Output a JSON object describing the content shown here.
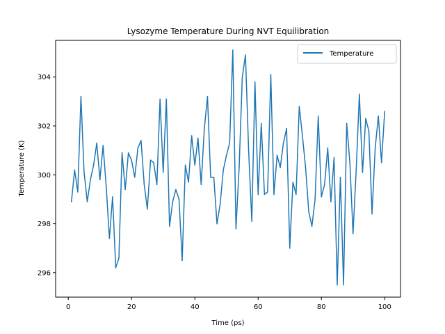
{
  "chart_data": {
    "type": "line",
    "title": "Lysozyme Temperature During NVT Equilibration",
    "xlabel": "Time (ps)",
    "ylabel": "Temperature (K)",
    "xlim": [
      -4,
      105
    ],
    "ylim": [
      295.0,
      305.5
    ],
    "x_ticks": [
      0,
      20,
      40,
      60,
      80,
      100
    ],
    "y_ticks": [
      296,
      298,
      300,
      302,
      304
    ],
    "legend_position": "top-right",
    "grid": false,
    "series": [
      {
        "name": "Temperature",
        "color": "#1f77b4",
        "x": [
          1,
          2,
          3,
          4,
          5,
          6,
          7,
          8,
          9,
          10,
          11,
          12,
          13,
          14,
          15,
          16,
          17,
          18,
          19,
          20,
          21,
          22,
          23,
          24,
          25,
          26,
          27,
          28,
          29,
          30,
          31,
          32,
          33,
          34,
          35,
          36,
          37,
          38,
          39,
          40,
          41,
          42,
          43,
          44,
          45,
          46,
          47,
          48,
          49,
          50,
          51,
          52,
          53,
          54,
          55,
          56,
          57,
          58,
          59,
          60,
          61,
          62,
          63,
          64,
          65,
          66,
          67,
          68,
          69,
          70,
          71,
          72,
          73,
          74,
          75,
          76,
          77,
          78,
          79,
          80,
          81,
          82,
          83,
          84,
          85,
          86,
          87,
          88,
          89,
          90,
          91,
          92,
          93,
          94,
          95,
          96,
          97,
          98,
          99,
          100
        ],
        "values": [
          298.9,
          300.2,
          299.3,
          303.2,
          300.1,
          298.9,
          299.8,
          300.4,
          301.3,
          299.8,
          301.2,
          299.5,
          297.4,
          299.1,
          296.2,
          296.6,
          300.9,
          299.4,
          300.9,
          300.6,
          299.9,
          301.1,
          301.4,
          299.6,
          298.6,
          300.6,
          300.5,
          299.6,
          303.1,
          300.1,
          303.1,
          297.9,
          298.9,
          299.4,
          299.0,
          296.5,
          300.4,
          299.7,
          301.6,
          300.4,
          301.5,
          299.6,
          301.9,
          303.2,
          299.9,
          299.9,
          298.0,
          298.8,
          300.2,
          300.8,
          301.3,
          305.1,
          297.8,
          300.3,
          304.0,
          304.9,
          301.0,
          298.1,
          303.8,
          299.2,
          302.1,
          299.2,
          299.3,
          304.1,
          299.2,
          300.8,
          300.3,
          301.3,
          301.9,
          297.0,
          299.7,
          299.2,
          302.8,
          301.6,
          300.3,
          298.5,
          297.9,
          299.0,
          302.4,
          299.1,
          299.6,
          301.1,
          298.9,
          300.7,
          295.5,
          299.9,
          295.5,
          302.1,
          300.5,
          297.6,
          300.2,
          303.3,
          300.1,
          302.3,
          301.8,
          298.4,
          301.1,
          302.4,
          300.5,
          302.6
        ]
      }
    ]
  }
}
